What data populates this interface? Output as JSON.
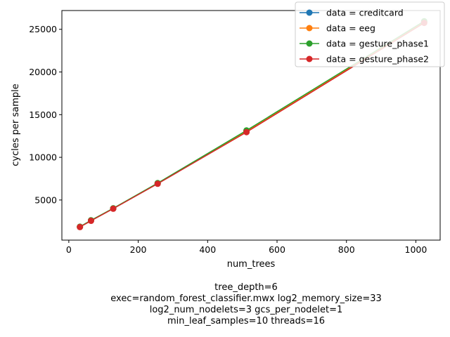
{
  "chart_data": {
    "type": "line",
    "xlabel": "num_trees",
    "ylabel": "cycles per sample",
    "xlim": [
      -20,
      1070
    ],
    "ylim": [
      300,
      27200
    ],
    "xticks": [
      0,
      200,
      400,
      600,
      800,
      1000
    ],
    "yticks": [
      5000,
      10000,
      15000,
      20000,
      25000
    ],
    "grid": false,
    "legend_position": "top-right",
    "series": [
      {
        "name": "data = creditcard",
        "color": "#1f77b4",
        "x": [
          32,
          64,
          128,
          256,
          512,
          1024
        ],
        "y": [
          1850,
          2600,
          4000,
          6950,
          13050,
          25850
        ]
      },
      {
        "name": "data = eeg",
        "color": "#ff7f0e",
        "x": [
          32,
          64,
          128,
          256,
          512,
          1024
        ],
        "y": [
          1850,
          2600,
          4000,
          6950,
          13050,
          25850
        ]
      },
      {
        "name": "data = gesture_phase1",
        "color": "#2ca02c",
        "x": [
          32,
          64,
          128,
          256,
          512,
          1024
        ],
        "y": [
          1870,
          2620,
          4030,
          6980,
          13150,
          25950
        ]
      },
      {
        "name": "data = gesture_phase2",
        "color": "#d62728",
        "x": [
          32,
          64,
          128,
          256,
          512,
          1024
        ],
        "y": [
          1830,
          2560,
          3980,
          6900,
          12950,
          25750
        ]
      }
    ],
    "caption_lines": [
      "tree_depth=6",
      "exec=random_forest_classifier.mwx   log2_memory_size=33",
      "log2_num_nodelets=3   gcs_per_nodelet=1",
      "min_leaf_samples=10   threads=16"
    ]
  }
}
